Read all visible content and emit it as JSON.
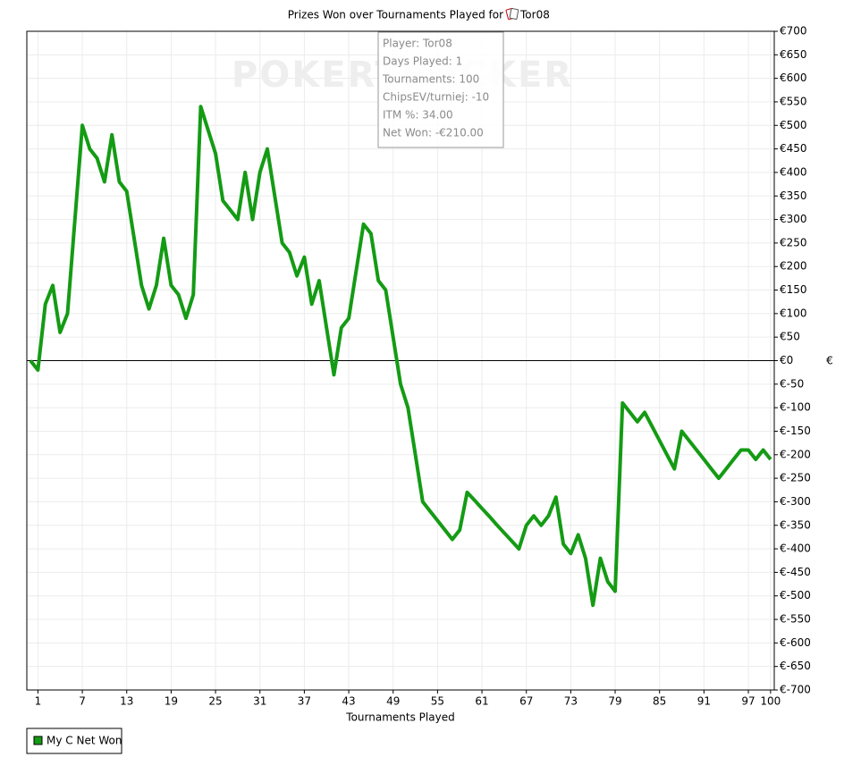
{
  "chart_data": {
    "type": "line",
    "title": "Prizes Won over Tournaments Played for",
    "player": "Tor08",
    "watermark": "POKERTRACKER",
    "xlabel": "Tournaments Played",
    "ylabel": "€",
    "annotations": [
      "Player: Tor08",
      "Days Played: 1",
      "Tournaments: 100",
      "ChipsEV/turniej: -10",
      "ITM %: 34.00",
      "Net Won: -€210.00"
    ],
    "x": [
      0,
      1,
      2,
      3,
      4,
      5,
      6,
      7,
      8,
      9,
      10,
      11,
      12,
      13,
      14,
      15,
      16,
      17,
      18,
      19,
      20,
      21,
      22,
      23,
      24,
      25,
      26,
      27,
      28,
      29,
      30,
      31,
      32,
      33,
      34,
      35,
      36,
      37,
      38,
      39,
      40,
      41,
      42,
      43,
      44,
      45,
      46,
      47,
      48,
      49,
      50,
      51,
      52,
      53,
      54,
      55,
      56,
      57,
      58,
      59,
      60,
      61,
      62,
      63,
      64,
      65,
      66,
      67,
      68,
      69,
      70,
      71,
      72,
      73,
      74,
      75,
      76,
      77,
      78,
      79,
      80,
      81,
      82,
      83,
      84,
      85,
      86,
      87,
      88,
      89,
      90,
      91,
      92,
      93,
      94,
      95,
      96,
      97,
      98,
      99,
      100
    ],
    "series": [
      {
        "name": "My C Net Won",
        "color": "#149b14",
        "values": [
          0,
          -20,
          120,
          160,
          60,
          100,
          300,
          500,
          450,
          430,
          380,
          480,
          380,
          360,
          260,
          160,
          110,
          160,
          260,
          160,
          140,
          90,
          140,
          540,
          490,
          440,
          340,
          320,
          300,
          400,
          300,
          400,
          450,
          350,
          250,
          230,
          180,
          220,
          120,
          170,
          70,
          -30,
          70,
          90,
          190,
          290,
          270,
          170,
          150,
          50,
          -50,
          -100,
          -200,
          -300,
          -320,
          -340,
          -360,
          -380,
          -360,
          -280,
          -297,
          -314,
          -331,
          -349,
          -366,
          -383,
          -400,
          -350,
          -330,
          -350,
          -330,
          -290,
          -390,
          -410,
          -370,
          -420,
          -520,
          -420,
          -470,
          -490,
          -90,
          -110,
          -130,
          -110,
          -140,
          -170,
          -200,
          -230,
          -150,
          -170,
          -190,
          -210,
          -230,
          -250,
          -230,
          -210,
          -190,
          -190,
          -210,
          -190,
          -210
        ]
      }
    ],
    "xlim": [
      -0.5,
      100.5
    ],
    "xticks": [
      1,
      7,
      13,
      19,
      25,
      31,
      37,
      43,
      49,
      55,
      61,
      67,
      73,
      79,
      85,
      91,
      97,
      100
    ],
    "ylim": [
      -700,
      700
    ],
    "yticks": [
      {
        "value": 700,
        "label": "€700"
      },
      {
        "value": 650,
        "label": "€650"
      },
      {
        "value": 600,
        "label": "€600"
      },
      {
        "value": 550,
        "label": "€550"
      },
      {
        "value": 500,
        "label": "€500"
      },
      {
        "value": 450,
        "label": "€450"
      },
      {
        "value": 400,
        "label": "€400"
      },
      {
        "value": 350,
        "label": "€350"
      },
      {
        "value": 300,
        "label": "€300"
      },
      {
        "value": 250,
        "label": "€250"
      },
      {
        "value": 200,
        "label": "€200"
      },
      {
        "value": 150,
        "label": "€150"
      },
      {
        "value": 100,
        "label": "€100"
      },
      {
        "value": 50,
        "label": "€50"
      },
      {
        "value": 0,
        "label": "€0"
      },
      {
        "value": -50,
        "label": "€-50"
      },
      {
        "value": -100,
        "label": "€-100"
      },
      {
        "value": -150,
        "label": "€-150"
      },
      {
        "value": -200,
        "label": "€-200"
      },
      {
        "value": -250,
        "label": "€-250"
      },
      {
        "value": -300,
        "label": "€-300"
      },
      {
        "value": -350,
        "label": "€-350"
      },
      {
        "value": -400,
        "label": "€-400"
      },
      {
        "value": -450,
        "label": "€-450"
      },
      {
        "value": -500,
        "label": "€-500"
      },
      {
        "value": -550,
        "label": "€-550"
      },
      {
        "value": -600,
        "label": "€-600"
      },
      {
        "value": -650,
        "label": "€-650"
      },
      {
        "value": -700,
        "label": "€-700"
      }
    ],
    "grid": true,
    "legend": "bottom-left"
  }
}
